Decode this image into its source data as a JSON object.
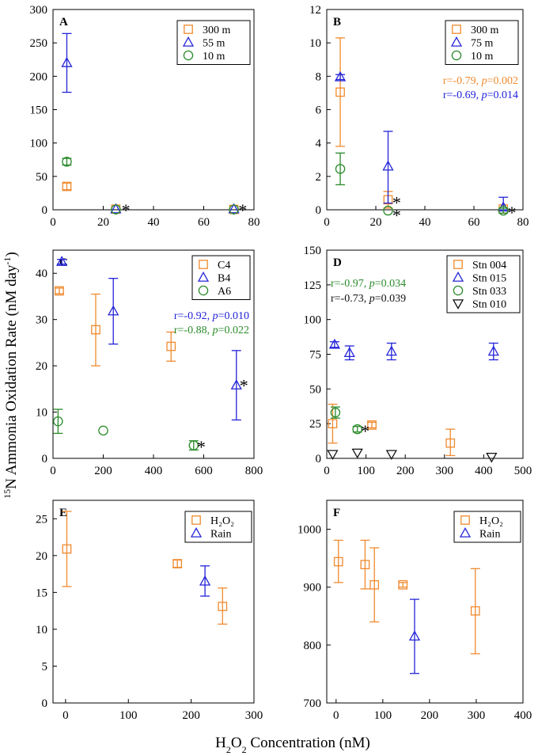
{
  "figure": {
    "ylabel_sup": "15",
    "ylabel_main": "N Ammonia Oxidation Rate (nM day",
    "ylabel_sup2": "-1",
    "ylabel_end": ")",
    "xlabel_a": "H",
    "xlabel_sub": "2",
    "xlabel_b": "O",
    "xlabel_sub2": "2",
    "xlabel_c": " Concentration (nM)"
  },
  "colors": {
    "orange": "#f08a2e",
    "blue": "#2323d8",
    "green": "#2a8a2a",
    "black": "#111111"
  },
  "chart_data": [
    {
      "id": "A",
      "type": "scatter",
      "xlim": [
        0,
        80
      ],
      "ylim": [
        0,
        300
      ],
      "xticks": [
        "0",
        "20",
        "40",
        "60",
        "80"
      ],
      "yticks": [
        "0",
        "50",
        "100",
        "150",
        "200",
        "250",
        "300"
      ],
      "legend": [
        {
          "label": "300 m",
          "marker": "square",
          "color": "orange"
        },
        {
          "label": "55 m",
          "marker": "triangle",
          "color": "blue"
        },
        {
          "label": "10 m",
          "marker": "circle",
          "color": "green"
        }
      ],
      "series": [
        {
          "name": "300 m",
          "marker": "square",
          "color": "orange",
          "points": [
            {
              "x": 5.5,
              "y": 35,
              "lo": 30,
              "hi": 40
            },
            {
              "x": 25,
              "y": 1
            },
            {
              "x": 72,
              "y": 0.5
            }
          ]
        },
        {
          "name": "55 m",
          "marker": "triangle",
          "color": "blue",
          "points": [
            {
              "x": 5.5,
              "y": 220,
              "lo": 176,
              "hi": 264
            },
            {
              "x": 25,
              "y": 1
            },
            {
              "x": 72,
              "y": 1
            }
          ]
        },
        {
          "name": "10 m",
          "marker": "circle",
          "color": "green",
          "points": [
            {
              "x": 5.5,
              "y": 72,
              "lo": 67,
              "hi": 77
            },
            {
              "x": 25,
              "y": 0.5
            },
            {
              "x": 72,
              "y": 0.5
            }
          ]
        }
      ],
      "stars": [
        {
          "x": 29,
          "y": 0
        },
        {
          "x": 75.5,
          "y": 0
        }
      ],
      "annotations": []
    },
    {
      "id": "B",
      "type": "scatter",
      "xlim": [
        0,
        80
      ],
      "ylim": [
        0,
        12
      ],
      "xticks": [
        "0",
        "20",
        "40",
        "60",
        "80"
      ],
      "yticks": [
        "0",
        "2",
        "4",
        "6",
        "8",
        "10",
        "12"
      ],
      "legend": [
        {
          "label": "300 m",
          "marker": "square",
          "color": "orange"
        },
        {
          "label": "75 m",
          "marker": "triangle",
          "color": "blue"
        },
        {
          "label": "10 m",
          "marker": "circle",
          "color": "green"
        }
      ],
      "series": [
        {
          "name": "300 m",
          "marker": "square",
          "color": "orange",
          "points": [
            {
              "x": 5.5,
              "y": 7.05,
              "lo": 3.8,
              "hi": 10.3
            },
            {
              "x": 25,
              "y": 0.6,
              "lo": 0.1,
              "hi": 1.1
            },
            {
              "x": 72,
              "y": 0.05
            }
          ]
        },
        {
          "name": "75 m",
          "marker": "triangle",
          "color": "blue",
          "points": [
            {
              "x": 5.5,
              "y": 7.95,
              "lo": 7.8,
              "hi": 8.1
            },
            {
              "x": 25,
              "y": 2.6,
              "lo": 0.4,
              "hi": 4.7
            },
            {
              "x": 72,
              "y": 0.15,
              "lo": 0,
              "hi": 0.75
            }
          ]
        },
        {
          "name": "10 m",
          "marker": "circle",
          "color": "green",
          "points": [
            {
              "x": 5.5,
              "y": 2.45,
              "lo": 1.5,
              "hi": 3.4
            },
            {
              "x": 25,
              "y": -0.05
            },
            {
              "x": 72,
              "y": -0.05,
              "lo": -0.2,
              "hi": 0.1
            }
          ]
        }
      ],
      "stars": [
        {
          "x": 28.5,
          "y": 0.45
        },
        {
          "x": 28.5,
          "y": -0.3
        },
        {
          "x": 75.5,
          "y": -0.15
        }
      ],
      "annotations": [
        {
          "color": "orange",
          "r": "r=-0.79, ",
          "p": "p",
          "pv": "=0.002"
        },
        {
          "color": "blue",
          "r": "r=-0.69, ",
          "p": "p",
          "pv": "=0.014"
        }
      ]
    },
    {
      "id": "C",
      "type": "scatter",
      "xlim": [
        0,
        800
      ],
      "ylim": [
        0,
        45
      ],
      "xticks": [
        "0",
        "200",
        "400",
        "600",
        "800"
      ],
      "yticks": [
        "0",
        "10",
        "20",
        "30",
        "40"
      ],
      "legend": [
        {
          "label": "C4",
          "marker": "square",
          "color": "orange"
        },
        {
          "label": "B4",
          "marker": "triangle",
          "color": "blue"
        },
        {
          "label": "A6",
          "marker": "circle",
          "color": "green"
        }
      ],
      "series": [
        {
          "name": "C4",
          "marker": "square",
          "color": "orange",
          "points": [
            {
              "x": 25,
              "y": 36.2,
              "lo": 35.6,
              "hi": 36.8
            },
            {
              "x": 170,
              "y": 27.8,
              "lo": 20,
              "hi": 35.5
            },
            {
              "x": 470,
              "y": 24.2,
              "lo": 21,
              "hi": 27.3
            }
          ]
        },
        {
          "name": "B4",
          "marker": "triangle",
          "color": "blue",
          "points": [
            {
              "x": 35,
              "y": 42.5,
              "lo": 42,
              "hi": 43
            },
            {
              "x": 240,
              "y": 31.8,
              "lo": 24.7,
              "hi": 38.9
            },
            {
              "x": 730,
              "y": 15.8,
              "lo": 8.3,
              "hi": 23.3
            }
          ]
        },
        {
          "name": "A6",
          "marker": "circle",
          "color": "green",
          "points": [
            {
              "x": 20,
              "y": 8,
              "lo": 5.4,
              "hi": 10.6
            },
            {
              "x": 200,
              "y": 6
            },
            {
              "x": 560,
              "y": 2.8,
              "lo": 1.8,
              "hi": 3.8
            }
          ]
        }
      ],
      "stars": [
        {
          "x": 760,
          "y": 15.8
        },
        {
          "x": 590,
          "y": 2.6
        }
      ],
      "annotations": [
        {
          "color": "blue",
          "r": "r=-0.92, ",
          "p": "p",
          "pv": "=0.010"
        },
        {
          "color": "green",
          "r": "r=-0.88, ",
          "p": "p",
          "pv": "=0.022"
        }
      ]
    },
    {
      "id": "D",
      "type": "scatter",
      "xlim": [
        0,
        500
      ],
      "ylim": [
        0,
        150
      ],
      "xticks": [
        "0",
        "100",
        "200",
        "300",
        "400",
        "500"
      ],
      "yticks": [
        "0",
        "25",
        "50",
        "75",
        "100",
        "125",
        "150"
      ],
      "legend": [
        {
          "label": "Stn 004",
          "marker": "square",
          "color": "orange"
        },
        {
          "label": "Stn 015",
          "marker": "triangle",
          "color": "blue"
        },
        {
          "label": "Stn 033",
          "marker": "circle",
          "color": "green"
        },
        {
          "label": "Stn 010",
          "marker": "invtriangle",
          "color": "black"
        }
      ],
      "series": [
        {
          "name": "Stn 004",
          "marker": "square",
          "color": "orange",
          "points": [
            {
              "x": 15,
              "y": 25,
              "lo": 11,
              "hi": 39
            },
            {
              "x": 115,
              "y": 24,
              "lo": 22,
              "hi": 26
            },
            {
              "x": 315,
              "y": 11,
              "lo": 2,
              "hi": 21
            }
          ]
        },
        {
          "name": "Stn 015",
          "marker": "triangle",
          "color": "blue",
          "points": [
            {
              "x": 20,
              "y": 82,
              "lo": 80,
              "hi": 84
            },
            {
              "x": 58,
              "y": 76,
              "lo": 71,
              "hi": 81
            },
            {
              "x": 165,
              "y": 77,
              "lo": 71,
              "hi": 83
            },
            {
              "x": 425,
              "y": 77,
              "lo": 71,
              "hi": 83
            }
          ]
        },
        {
          "name": "Stn 033",
          "marker": "circle",
          "color": "green",
          "points": [
            {
              "x": 22,
              "y": 33,
              "lo": 29,
              "hi": 37
            },
            {
              "x": 78,
              "y": 21,
              "lo": 19,
              "hi": 23
            }
          ]
        },
        {
          "name": "Stn 010",
          "marker": "invtriangle",
          "color": "black",
          "points": [
            {
              "x": 15,
              "y": 3
            },
            {
              "x": 78,
              "y": 4
            },
            {
              "x": 165,
              "y": 3
            },
            {
              "x": 420,
              "y": 1
            }
          ]
        }
      ],
      "stars": [
        {
          "x": 98,
          "y": 20
        }
      ],
      "annotations": [
        {
          "color": "green",
          "r": "r=-0.97, ",
          "p": "p",
          "pv": "=0.034"
        },
        {
          "color": "black",
          "r": "r=-0.73, ",
          "p": "p",
          "pv": "=0.039"
        }
      ]
    },
    {
      "id": "E",
      "type": "scatter",
      "xlim": [
        -20,
        300
      ],
      "ylim": [
        0,
        27.5
      ],
      "xticks": [
        "0",
        "100",
        "200",
        "300"
      ],
      "yticks": [
        "0",
        "5",
        "10",
        "15",
        "20",
        "25"
      ],
      "legend": [
        {
          "label": "H₂O₂",
          "marker": "square",
          "color": "orange"
        },
        {
          "label": "Rain",
          "marker": "triangle",
          "color": "blue"
        }
      ],
      "series": [
        {
          "name": "H₂O₂",
          "marker": "square",
          "color": "orange",
          "points": [
            {
              "x": 2,
              "y": 20.9,
              "lo": 15.8,
              "hi": 26
            },
            {
              "x": 178,
              "y": 18.9,
              "lo": 18.4,
              "hi": 19.4
            },
            {
              "x": 250,
              "y": 13.1,
              "lo": 10.7,
              "hi": 15.6
            }
          ]
        },
        {
          "name": "Rain",
          "marker": "triangle",
          "color": "blue",
          "points": [
            {
              "x": 222,
              "y": 16.5,
              "lo": 14.5,
              "hi": 18.6
            }
          ]
        }
      ],
      "stars": [],
      "annotations": []
    },
    {
      "id": "F",
      "type": "scatter",
      "xlim": [
        -20,
        400
      ],
      "ylim": [
        700,
        1050
      ],
      "xticks": [
        "0",
        "100",
        "200",
        "300",
        "400"
      ],
      "yticks": [
        "700",
        "800",
        "900",
        "1000"
      ],
      "legend": [
        {
          "label": "H₂O₂",
          "marker": "square",
          "color": "orange"
        },
        {
          "label": "Rain",
          "marker": "triangle",
          "color": "blue"
        }
      ],
      "series": [
        {
          "name": "H₂O₂",
          "marker": "square",
          "color": "orange",
          "points": [
            {
              "x": 5,
              "y": 944,
              "lo": 908,
              "hi": 981
            },
            {
              "x": 62,
              "y": 939,
              "lo": 897,
              "hi": 981
            },
            {
              "x": 82,
              "y": 904,
              "lo": 840,
              "hi": 968
            },
            {
              "x": 143,
              "y": 904,
              "lo": 900,
              "hi": 908
            },
            {
              "x": 298,
              "y": 859,
              "lo": 785,
              "hi": 932
            }
          ]
        },
        {
          "name": "Rain",
          "marker": "triangle",
          "color": "blue",
          "points": [
            {
              "x": 168,
              "y": 815,
              "lo": 751,
              "hi": 879
            }
          ]
        }
      ],
      "stars": [],
      "annotations": []
    }
  ]
}
